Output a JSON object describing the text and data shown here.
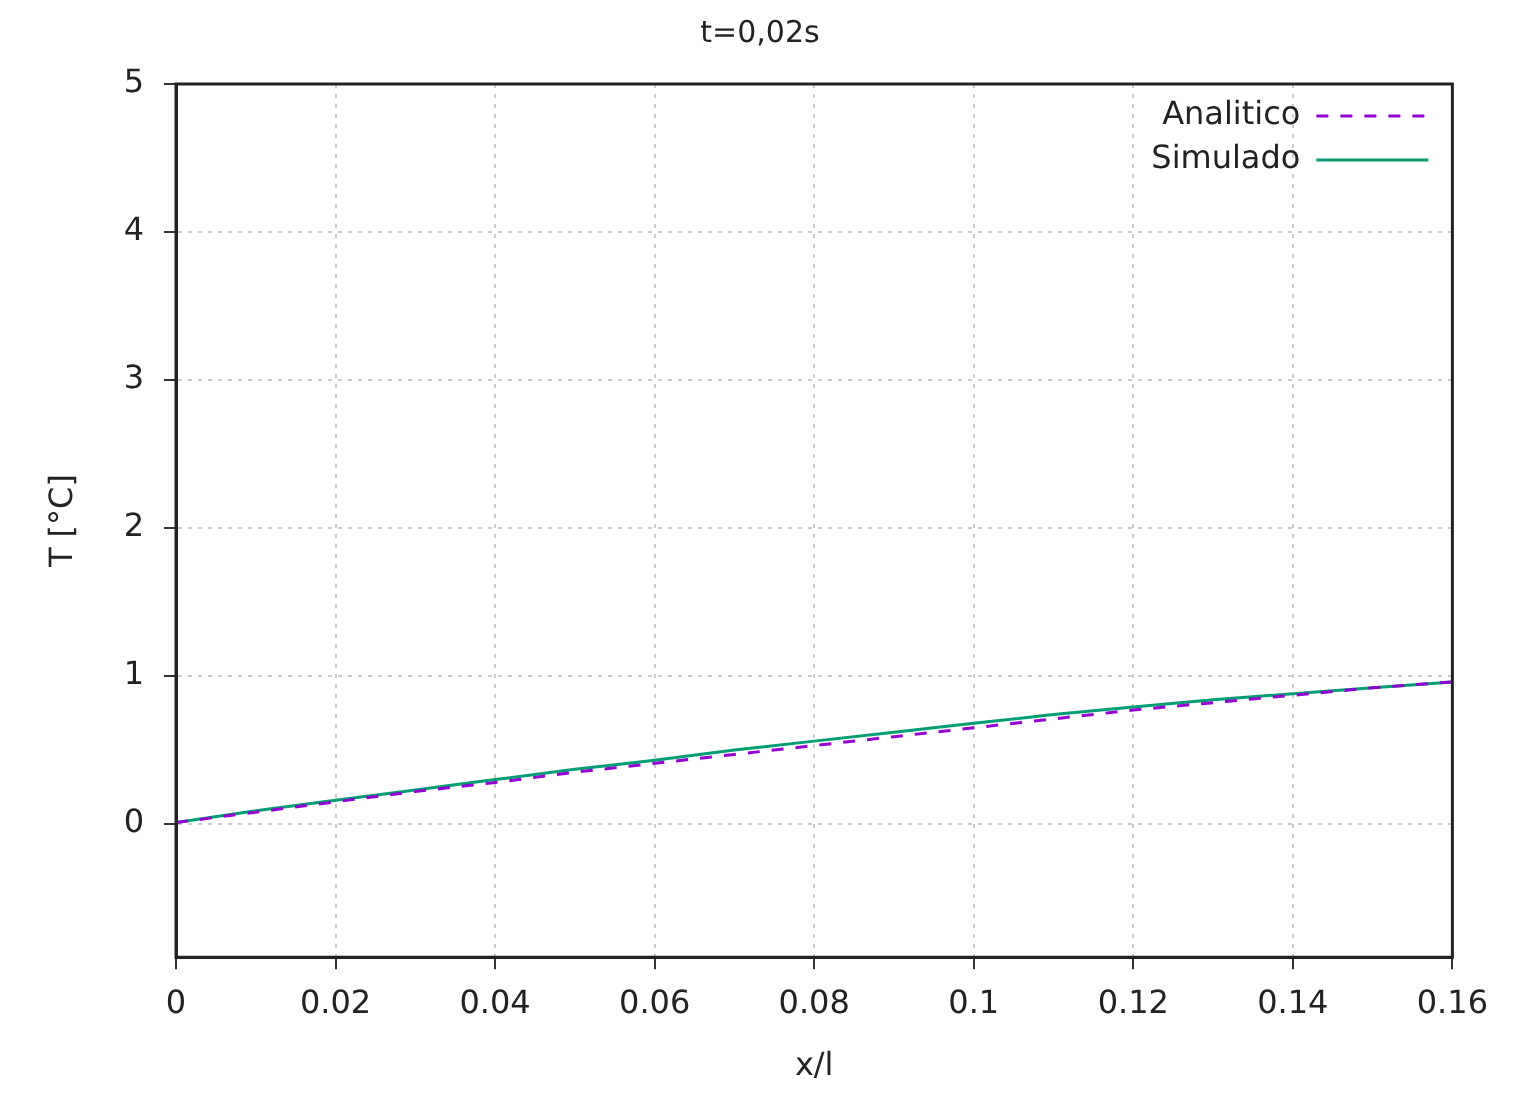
{
  "chart_data": {
    "type": "line",
    "title": "t=0,02s",
    "xlabel": "x/l",
    "ylabel": "T [°C]",
    "xlim": [
      0,
      0.16
    ],
    "xticks": [
      0,
      0.02,
      0.04,
      0.06,
      0.08,
      0.1,
      0.12,
      0.14,
      0.16
    ],
    "ylim": [
      -0.9,
      5
    ],
    "yticks": [
      0,
      1,
      2,
      3,
      4,
      5
    ],
    "grid": true,
    "legend": "top right",
    "marker": "none",
    "x": [
      0,
      0.01,
      0.02,
      0.03,
      0.04,
      0.05,
      0.06,
      0.07,
      0.08,
      0.09,
      0.1,
      0.11,
      0.12,
      0.13,
      0.14,
      0.15,
      0.16
    ],
    "series": [
      {
        "name": "Analitico",
        "color": "#9400d3",
        "line_style": "dashed",
        "values": [
          0.01,
          0.08,
          0.15,
          0.22,
          0.28,
          0.35,
          0.41,
          0.47,
          0.53,
          0.59,
          0.65,
          0.71,
          0.77,
          0.82,
          0.87,
          0.92,
          0.96
        ]
      },
      {
        "name": "Simulado",
        "color": "#009e73",
        "line_style": "solid",
        "values": [
          0.01,
          0.09,
          0.16,
          0.23,
          0.3,
          0.37,
          0.43,
          0.5,
          0.56,
          0.62,
          0.68,
          0.74,
          0.79,
          0.84,
          0.88,
          0.92,
          0.96
        ]
      }
    ]
  }
}
